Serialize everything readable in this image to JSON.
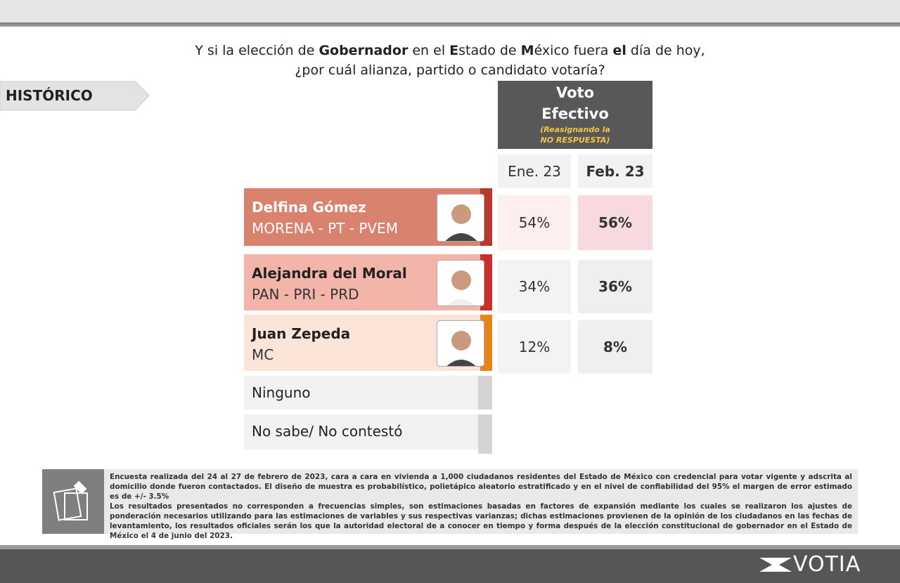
{
  "question": {
    "lines": [
      [
        {
          "text": "Y si la elección de ",
          "bold": false
        },
        {
          "text": "Gobernador",
          "bold": true
        },
        {
          "text": " en el ",
          "bold": false
        },
        {
          "text": "E",
          "bold": true
        },
        {
          "text": "stado de ",
          "bold": false
        },
        {
          "text": "M",
          "bold": true
        },
        {
          "text": "éxico fuera ",
          "bold": false
        },
        {
          "text": "el",
          "bold": true
        },
        {
          "text": " día de hoy,",
          "bold": false
        }
      ],
      [
        {
          "text": "¿por cuál alianza, partido o candidato votaría?",
          "bold": false
        }
      ]
    ]
  },
  "section_tag": "HISTÓRICO",
  "header": {
    "title_lines": [
      "Voto",
      "Efectivo"
    ],
    "note_lines": [
      "(Reasignando la",
      "NO RESPUESTA)"
    ]
  },
  "columns": [
    "Ene. 23",
    "Feb. 23"
  ],
  "rows": [
    {
      "name": "Delfina Gómez",
      "party": "MORENA - PT - PVEM",
      "values": [
        "54%",
        "56%"
      ],
      "color": "#d9826e",
      "accent": "#b83a2c"
    },
    {
      "name": "Alejandra del Moral",
      "party": "PAN - PRI - PRD",
      "values": [
        "34%",
        "36%"
      ],
      "color": "#f3b4aa",
      "accent": "#c9302c"
    },
    {
      "name": "Juan Zepeda",
      "party": "MC",
      "values": [
        "12%",
        "8%"
      ],
      "color": "#fde4d8",
      "accent": "#e8841c"
    }
  ],
  "other_rows": [
    "Ninguno",
    "No sabe/ No contestó"
  ],
  "footnote": {
    "paragraphs": [
      "Encuesta realizada del 24 al 27 de febrero de 2023, cara a cara en vivienda a 1,000 ciudadanos residentes del Estado de México con credencial para votar vigente y adscrita al domicilio donde fueron contactados. El diseño de muestra es probabilístico, polietápico aleatorio estratificado y en el nivel de confiabilidad del 95% el margen de error estimado es de +/- 3.5%",
      "Los resultados presentados no corresponden a frecuencias simples, son estimaciones basadas en factores de expansión mediante los cuales se realizaron los ajustes de ponderación necesarios utilizando para las estimaciones de variables y sus respectivas varianzas; dichas estimaciones provienen de la opinión de los ciudadanos en las fechas de levantamiento, los resultados oficiales serán los que la autoridad electoral de a conocer en tiempo y forma después de la elección constitucional de gobernador en el Estado de México el 4 de junio del 2023."
    ]
  },
  "logo": "VOTIA"
}
